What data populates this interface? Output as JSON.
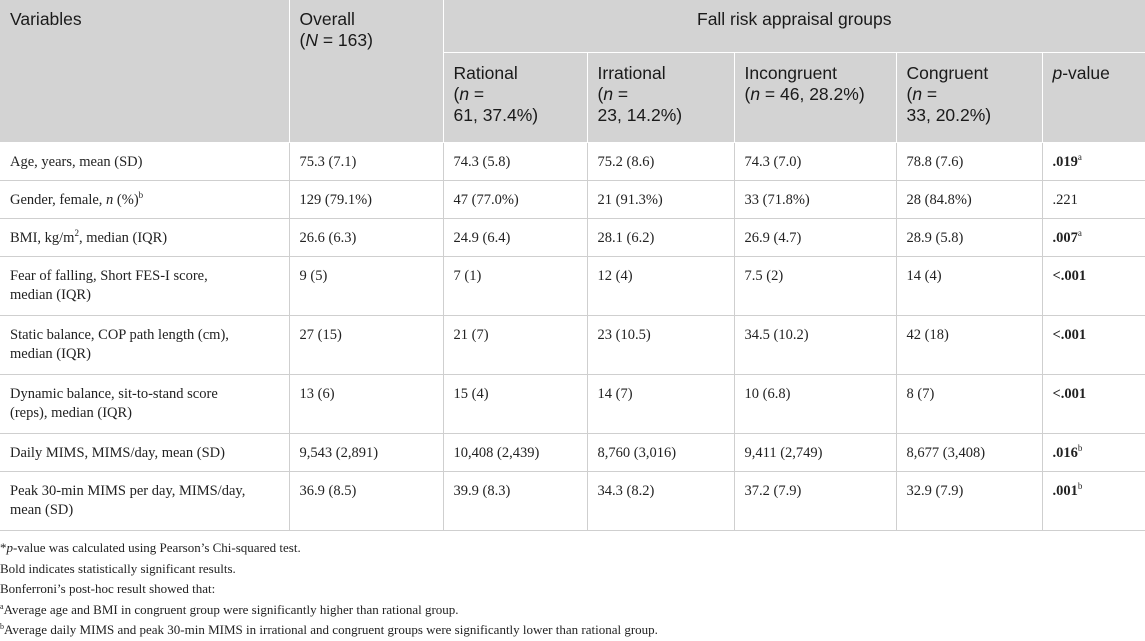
{
  "header": {
    "variables": "Variables",
    "overall": "Overall",
    "overall_n_prefix": "(",
    "overall_n_italic": "N",
    "overall_n_suffix": " = 163)",
    "group_title": "Fall risk appraisal groups",
    "groups": [
      {
        "name": "Rational",
        "n_open": "(",
        "n_italic": "n",
        "n_rest": " =",
        "n_line2": "61, 37.4%)"
      },
      {
        "name": "Irrational",
        "n_open": "(",
        "n_italic": "n",
        "n_rest": " =",
        "n_line2": "23, 14.2%)"
      },
      {
        "name": "Incongruent",
        "n_open": "(",
        "n_italic": "n",
        "n_rest": " = 46, 28.2%)",
        "n_line2": ""
      },
      {
        "name": "Congruent",
        "n_open": "(",
        "n_italic": "n",
        "n_rest": " =",
        "n_line2": "33, 20.2%)"
      }
    ],
    "pvalue_italic": "p",
    "pvalue_rest": "-value"
  },
  "rows": [
    {
      "var": "Age, years, mean (SD)",
      "overall": "75.3 (7.1)",
      "rational": "74.3 (5.8)",
      "irrational": "75.2 (8.6)",
      "incongruent": "74.3 (7.0)",
      "congruent": "78.8 (7.6)",
      "p": ".019",
      "p_sup": "a"
    },
    {
      "var_pre": "Gender, female, ",
      "var_italic": "n",
      "var_post": " (%)",
      "var_sup": "b",
      "overall": "129 (79.1%)",
      "rational": "47 (77.0%)",
      "irrational": "21 (91.3%)",
      "incongruent": "33 (71.8%)",
      "congruent": "28 (84.8%)",
      "p": ".221",
      "p_sup": ""
    },
    {
      "var_pre": "BMI, kg/m",
      "var_sup": "2",
      "var_post": ", median (IQR)",
      "overall": "26.6 (6.3)",
      "rational": "24.9 (6.4)",
      "irrational": "28.1 (6.2)",
      "incongruent": "26.9 (4.7)",
      "congruent": "28.9 (5.8)",
      "p": ".007",
      "p_sup": "a"
    },
    {
      "var": "Fear of falling, Short FES-I score,",
      "var2": "median (IQR)",
      "overall": "9 (5)",
      "rational": "7 (1)",
      "irrational": "12 (4)",
      "incongruent": "7.5 (2)",
      "congruent": "14 (4)",
      "p": "<.001",
      "p_sup": ""
    },
    {
      "var": "Static balance, COP path length (cm),",
      "var2": "median (IQR)",
      "overall": "27 (15)",
      "rational": "21 (7)",
      "irrational": "23 (10.5)",
      "incongruent": "34.5 (10.2)",
      "congruent": "42 (18)",
      "p": "<.001",
      "p_sup": ""
    },
    {
      "var": "Dynamic balance, sit-to-stand score",
      "var2": "(reps), median (IQR)",
      "overall": "13 (6)",
      "rational": "15 (4)",
      "irrational": "14 (7)",
      "incongruent": "10 (6.8)",
      "congruent": "8 (7)",
      "p": "<.001",
      "p_sup": ""
    },
    {
      "var": "Daily MIMS, MIMS/day, mean (SD)",
      "overall": "9,543 (2,891)",
      "rational": "10,408 (2,439)",
      "irrational": "8,760 (3,016)",
      "incongruent": "9,411 (2,749)",
      "congruent": "8,677 (3,408)",
      "p": ".016",
      "p_sup": "b"
    },
    {
      "var": "Peak 30-min MIMS per day, MIMS/day,",
      "var2": "mean (SD)",
      "overall": "36.9 (8.5)",
      "rational": "39.9 (8.3)",
      "irrational": "34.3 (8.2)",
      "incongruent": "37.2 (7.9)",
      "congruent": "32.9 (7.9)",
      "p": ".001",
      "p_sup": "b"
    }
  ],
  "notes": {
    "n1_star": "*",
    "n1_italic": "p",
    "n1_rest": "-value was calculated using Pearson’s Chi-squared test.",
    "n2": "Bold indicates statistically significant results.",
    "n3": "Bonferroni’s post-hoc result showed that:",
    "n4_sup": "a",
    "n4": "Average age and BMI in congruent group were significantly higher than rational group.",
    "n5_sup": "b",
    "n5": "Average daily MIMS and peak 30-min MIMS in irrational and congruent groups were significantly lower than rational group."
  }
}
